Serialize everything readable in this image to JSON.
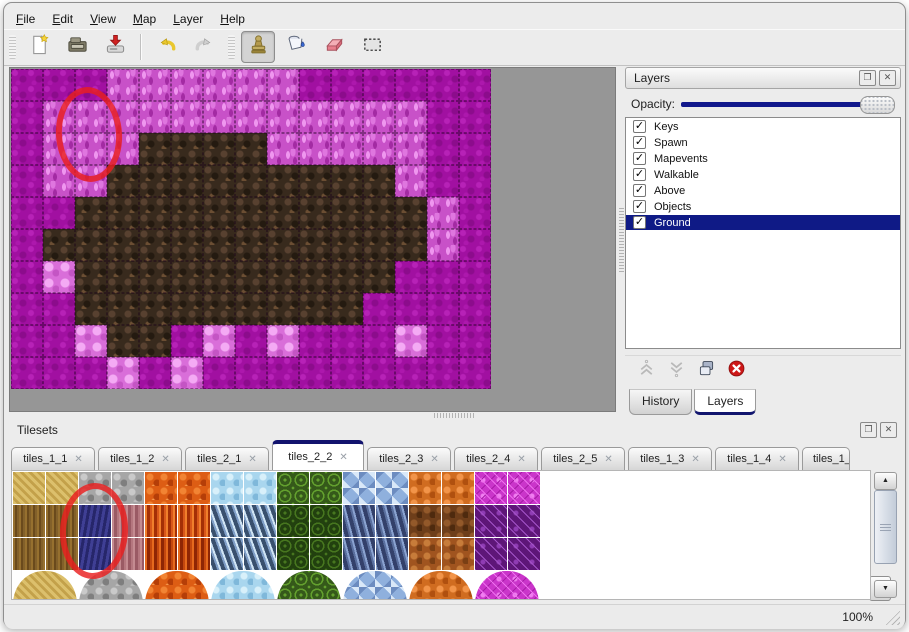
{
  "menu": {
    "items": [
      {
        "label": "File"
      },
      {
        "label": "Edit"
      },
      {
        "label": "View"
      },
      {
        "label": "Map"
      },
      {
        "label": "Layer"
      },
      {
        "label": "Help"
      }
    ]
  },
  "toolbar": {
    "tools": [
      {
        "name": "new-file",
        "icon": "new"
      },
      {
        "name": "open-file",
        "icon": "open"
      },
      {
        "name": "save-file",
        "icon": "save"
      },
      {
        "name": "undo",
        "icon": "undo"
      },
      {
        "name": "redo",
        "icon": "redo"
      },
      {
        "name": "stamp-tool",
        "icon": "stamp",
        "selected": true
      },
      {
        "name": "fill-tool",
        "icon": "fill"
      },
      {
        "name": "eraser-tool",
        "icon": "eraser"
      },
      {
        "name": "rect-select-tool",
        "icon": "select"
      }
    ]
  },
  "map": {
    "tile_size": 32,
    "columns": 15,
    "rows": 10,
    "legend": {
      "m": "magenta-scale-ground",
      "p": "bright-pink-rock",
      "l": "light-pink-clump",
      "b": "dark-brown-rock"
    },
    "grid": [
      "mmmppppppmmmmmm",
      "mppppppppppppmm",
      "mpppbbbbpppppmm",
      "mppbbbbbbbbbpmm",
      "mmbbbbbbbbbbbpm",
      "mbbbbbbbbbbbbpm",
      "mlbbbbbbbbbbmmm",
      "mmbbbbbbbbbmmmm",
      "mmlbbmlmlmmmlmm",
      "mmmlmlmmmmmmmmm"
    ]
  },
  "annotations": {
    "map_highlight": {
      "shape": "ellipse",
      "color": "#e61e1e",
      "note": "hand-drawn red circle over pink tiles near top-left of map"
    },
    "tileset_highlight": {
      "shape": "ellipse",
      "color": "#e61e1e",
      "note": "hand-drawn red circle over dark blue tiles in tileset"
    }
  },
  "layers_panel": {
    "title": "Layers",
    "float_button": "❐",
    "close_button": "✕",
    "opacity_label": "Opacity:",
    "layers": [
      {
        "name": "Keys",
        "visible": true
      },
      {
        "name": "Spawn",
        "visible": true
      },
      {
        "name": "Mapevents",
        "visible": true
      },
      {
        "name": "Walkable",
        "visible": true
      },
      {
        "name": "Above",
        "visible": true
      },
      {
        "name": "Objects",
        "visible": true
      },
      {
        "name": "Ground",
        "visible": true
      }
    ],
    "selected_layer": "Ground",
    "tools": [
      {
        "name": "raise-layer",
        "icon": "raise",
        "disabled": true
      },
      {
        "name": "lower-layer",
        "icon": "lower",
        "disabled": true
      },
      {
        "name": "duplicate-layer",
        "icon": "duplicate",
        "disabled": false
      },
      {
        "name": "delete-layer",
        "icon": "delete",
        "disabled": false
      }
    ],
    "tabs": [
      {
        "label": "History",
        "active": false
      },
      {
        "label": "Layers",
        "active": true
      }
    ]
  },
  "tilesets_panel": {
    "title": "Tilesets",
    "float_button": "❐",
    "close_button": "✕",
    "tab_close_glyph": "✕",
    "tabs": [
      {
        "label": "tiles_1_1"
      },
      {
        "label": "tiles_1_2"
      },
      {
        "label": "tiles_2_1"
      },
      {
        "label": "tiles_2_2",
        "active": true
      },
      {
        "label": "tiles_2_3"
      },
      {
        "label": "tiles_2_4"
      },
      {
        "label": "tiles_2_5"
      },
      {
        "label": "tiles_1_3"
      },
      {
        "label": "tiles_1_4"
      },
      {
        "label": "tiles_1_",
        "truncated": true
      }
    ],
    "grid": [
      [
        "sand",
        "sand",
        "rock",
        "rock",
        "lava",
        "lava",
        "icef",
        "icef",
        "vine",
        "vine",
        "gem",
        "gem",
        "pebo",
        "pebo",
        "webm",
        "webm"
      ],
      [
        "bark",
        "bark",
        "navy",
        "mauve",
        "flame",
        "flame",
        "icec",
        "icec",
        "vined",
        "vined",
        "spike",
        "spike",
        "pebb",
        "pebb",
        "webp",
        "webp"
      ],
      [
        "bark",
        "bark",
        "navy",
        "mauve",
        "flame2",
        "flame2",
        "icec",
        "icec",
        "vined",
        "vined",
        "spike",
        "spike",
        "pebb2",
        "pebb2",
        "webp",
        "webp"
      ]
    ],
    "blobs": [
      "sand",
      "rock",
      "lava",
      "icef",
      "vine",
      "gem",
      "pebo",
      "webm"
    ]
  },
  "status_bar": {
    "zoom_level": "100%"
  },
  "colors": {
    "accent_navy": "#11188c",
    "selection_blue": "#0f1a86",
    "annotation_red": "#e61e1e",
    "workspace_gray": "#969696",
    "window_bg": "#ececec"
  }
}
